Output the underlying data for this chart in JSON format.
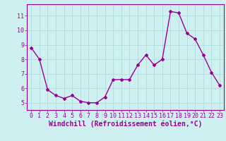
{
  "x": [
    0,
    1,
    2,
    3,
    4,
    5,
    6,
    7,
    8,
    9,
    10,
    11,
    12,
    13,
    14,
    15,
    16,
    17,
    18,
    19,
    20,
    21,
    22,
    23
  ],
  "y": [
    8.8,
    8.0,
    5.9,
    5.5,
    5.3,
    5.5,
    5.1,
    5.0,
    5.0,
    5.4,
    6.6,
    6.6,
    6.6,
    7.6,
    8.3,
    7.6,
    8.0,
    11.3,
    11.2,
    9.8,
    9.4,
    8.3,
    7.1,
    6.2
  ],
  "line_color": "#990099",
  "marker": "D",
  "marker_size": 2,
  "bg_color": "#cff0f0",
  "grid_color": "#aad8d8",
  "xlabel": "Windchill (Refroidissement éolien,°C)",
  "xlabel_color": "#990099",
  "tick_color": "#990099",
  "xlim": [
    -0.5,
    23.5
  ],
  "ylim": [
    4.5,
    11.8
  ],
  "yticks": [
    5,
    6,
    7,
    8,
    9,
    10,
    11
  ],
  "xticks": [
    0,
    1,
    2,
    3,
    4,
    5,
    6,
    7,
    8,
    9,
    10,
    11,
    12,
    13,
    14,
    15,
    16,
    17,
    18,
    19,
    20,
    21,
    22,
    23
  ],
  "spine_color": "#990099",
  "tick_font_size": 6,
  "label_font_size": 7,
  "line_width": 1.0
}
